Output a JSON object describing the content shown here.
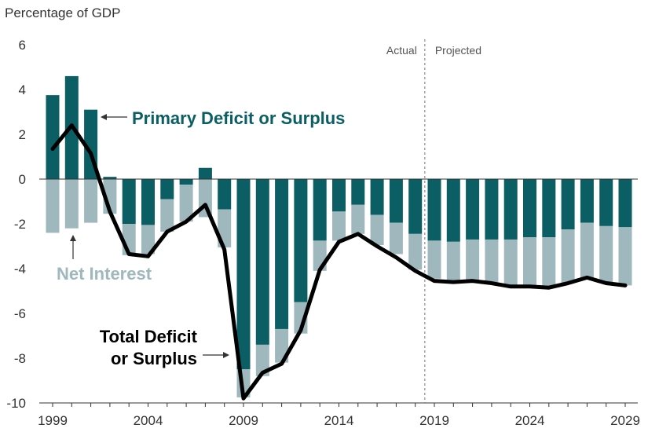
{
  "chart_data": {
    "type": "bar",
    "ylabel": "Percentage of GDP",
    "ylim": [
      -10,
      6
    ],
    "yticks": [
      "6",
      "4",
      "2",
      "0",
      "-2",
      "-4",
      "-6",
      "-8",
      "-10"
    ],
    "xtick_labels": [
      "1999",
      "2004",
      "2009",
      "2014",
      "2019",
      "2024",
      "2029"
    ],
    "x": [
      1999,
      2000,
      2001,
      2002,
      2003,
      2004,
      2005,
      2006,
      2007,
      2008,
      2009,
      2010,
      2011,
      2012,
      2013,
      2014,
      2015,
      2016,
      2017,
      2018,
      2019,
      2020,
      2021,
      2022,
      2023,
      2024,
      2025,
      2026,
      2027,
      2028,
      2029
    ],
    "series": [
      {
        "name": "Primary Deficit or Surplus",
        "color": "#0b5e63",
        "values": [
          3.75,
          4.6,
          3.1,
          0.1,
          -2.0,
          -2.05,
          -0.9,
          -0.25,
          0.5,
          -1.35,
          -8.5,
          -7.4,
          -6.7,
          -5.5,
          -2.75,
          -1.45,
          -1.15,
          -1.6,
          -1.95,
          -2.45,
          -2.75,
          -2.8,
          -2.7,
          -2.7,
          -2.7,
          -2.6,
          -2.6,
          -2.25,
          -1.95,
          -2.1,
          -2.15
        ]
      },
      {
        "name": "Net Interest",
        "color": "#9fb8bd",
        "values": [
          -2.4,
          -2.2,
          -1.95,
          -1.55,
          -1.4,
          -1.3,
          -1.45,
          -1.65,
          -1.7,
          -1.7,
          -1.25,
          -1.4,
          -1.5,
          -1.4,
          -1.35,
          -1.3,
          -1.3,
          -1.35,
          -1.4,
          -1.6,
          -1.7,
          -1.75,
          -1.8,
          -1.9,
          -2.05,
          -2.2,
          -2.25,
          -2.4,
          -2.45,
          -2.55,
          -2.6
        ]
      },
      {
        "name": "Total Deficit or Surplus",
        "type": "line",
        "color": "#000000",
        "values": [
          1.35,
          2.4,
          1.15,
          -1.45,
          -3.35,
          -3.45,
          -2.35,
          -1.9,
          -1.15,
          -3.15,
          -9.8,
          -8.65,
          -8.25,
          -6.75,
          -4.05,
          -2.8,
          -2.45,
          -3.0,
          -3.5,
          -4.1,
          -4.55,
          -4.6,
          -4.55,
          -4.65,
          -4.8,
          -4.8,
          -4.85,
          -4.65,
          -4.4,
          -4.65,
          -4.75
        ]
      }
    ],
    "divider": {
      "after": 2018,
      "left_label": "Actual",
      "right_label": "Projected"
    },
    "annotations": {
      "primary": "Primary Deficit or Surplus",
      "net_interest": "Net Interest",
      "total_line1": "Total Deficit",
      "total_line2": "or Surplus"
    }
  }
}
